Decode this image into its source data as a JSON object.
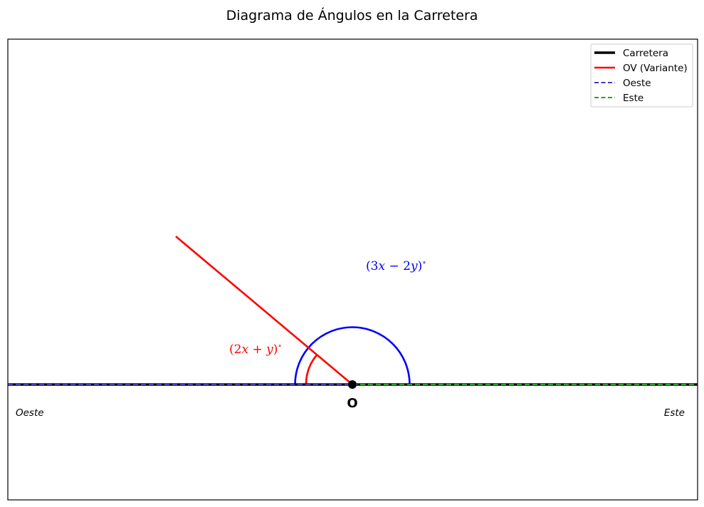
{
  "title": "Diagrama de Ángulos en la Carretera",
  "colors": {
    "road": "#000000",
    "variant": "#ff0000",
    "west": "#3f3fbf",
    "east": "#2ca02c",
    "arc_blue": "#0000ff",
    "arc_red": "#ff0000"
  },
  "legend": [
    {
      "label": "Carretera",
      "style": "solid-thick",
      "color": "#000000"
    },
    {
      "label": "OV (Variante)",
      "style": "solid",
      "color": "#ff0000"
    },
    {
      "label": "Oeste",
      "style": "dashed",
      "color": "#3f3fbf"
    },
    {
      "label": "Este",
      "style": "dashed",
      "color": "#2ca02c"
    }
  ],
  "labels": {
    "west": "Oeste",
    "east": "Este",
    "origin": "O"
  },
  "angles": {
    "red": {
      "open": "(",
      "a": "2",
      "v1": "x",
      "op": " + ",
      "v2": "y",
      "close": ")",
      "deg": "∘",
      "degrees": 140,
      "color": "#ff0000"
    },
    "blue": {
      "open": "(",
      "a": "3",
      "v1": "x",
      "op": " − ",
      "b": "2",
      "v2": "y",
      "close": ")",
      "deg": "∘",
      "degrees": 180,
      "color": "#0000ff"
    }
  }
}
